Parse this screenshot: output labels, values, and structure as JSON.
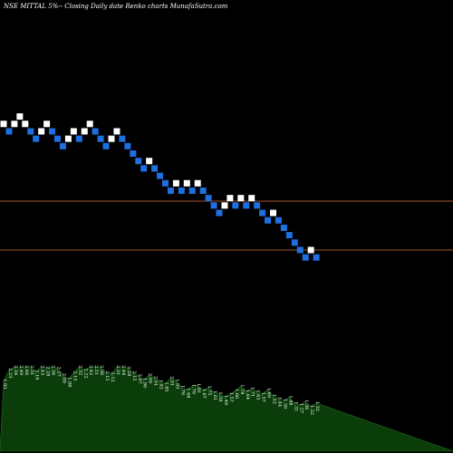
{
  "chart_data": {
    "type": "renko",
    "title": "NSE MITTAL 5%-- Closing Daily date Renko charts MunafaSutra.com",
    "colors": {
      "background": "#000000",
      "up_brick": "#ffffff",
      "down_brick": "#1e6fe0",
      "level_line": "#a0522d",
      "volume_area": "#0a3d0a",
      "volume_outline": "#1f6b1f",
      "label": "#ffffff"
    },
    "levels": [
      1.0,
      0.0
    ],
    "brick_range": [
      0,
      16
    ],
    "bricks": [
      {
        "dir": "up",
        "level": 14.5
      },
      {
        "dir": "down",
        "level": 13.5
      },
      {
        "dir": "up",
        "level": 14.5
      },
      {
        "dir": "up",
        "level": 15.5
      },
      {
        "dir": "up",
        "level": 14.5
      },
      {
        "dir": "down",
        "level": 13.5
      },
      {
        "dir": "down",
        "level": 12.5
      },
      {
        "dir": "up",
        "level": 13.5
      },
      {
        "dir": "up",
        "level": 14.5
      },
      {
        "dir": "down",
        "level": 13.5
      },
      {
        "dir": "down",
        "level": 12.5
      },
      {
        "dir": "down",
        "level": 11.5
      },
      {
        "dir": "up",
        "level": 12.5
      },
      {
        "dir": "up",
        "level": 13.5
      },
      {
        "dir": "down",
        "level": 12.5
      },
      {
        "dir": "up",
        "level": 13.5
      },
      {
        "dir": "up",
        "level": 14.5
      },
      {
        "dir": "down",
        "level": 13.5
      },
      {
        "dir": "down",
        "level": 12.5
      },
      {
        "dir": "down",
        "level": 11.5
      },
      {
        "dir": "up",
        "level": 12.5
      },
      {
        "dir": "up",
        "level": 13.5
      },
      {
        "dir": "down",
        "level": 12.5
      },
      {
        "dir": "down",
        "level": 11.5
      },
      {
        "dir": "down",
        "level": 10.5
      },
      {
        "dir": "down",
        "level": 9.5
      },
      {
        "dir": "down",
        "level": 8.5
      },
      {
        "dir": "up",
        "level": 9.5
      },
      {
        "dir": "down",
        "level": 8.5
      },
      {
        "dir": "down",
        "level": 7.5
      },
      {
        "dir": "down",
        "level": 6.5
      },
      {
        "dir": "down",
        "level": 5.5
      },
      {
        "dir": "up",
        "level": 6.5
      },
      {
        "dir": "down",
        "level": 5.5
      },
      {
        "dir": "up",
        "level": 6.5
      },
      {
        "dir": "down",
        "level": 5.5
      },
      {
        "dir": "up",
        "level": 6.5
      },
      {
        "dir": "down",
        "level": 5.5
      },
      {
        "dir": "down",
        "level": 4.5
      },
      {
        "dir": "down",
        "level": 3.5
      },
      {
        "dir": "down",
        "level": 2.5
      },
      {
        "dir": "up",
        "level": 3.5
      },
      {
        "dir": "up",
        "level": 4.5
      },
      {
        "dir": "down",
        "level": 3.5
      },
      {
        "dir": "up",
        "level": 4.5
      },
      {
        "dir": "down",
        "level": 3.5
      },
      {
        "dir": "up",
        "level": 4.5
      },
      {
        "dir": "down",
        "level": 3.5
      },
      {
        "dir": "down",
        "level": 2.5
      },
      {
        "dir": "down",
        "level": 1.5
      },
      {
        "dir": "up",
        "level": 2.5
      },
      {
        "dir": "down",
        "level": 1.5
      },
      {
        "dir": "down",
        "level": 0.5
      },
      {
        "dir": "down",
        "level": -0.5
      },
      {
        "dir": "down",
        "level": -1.5
      },
      {
        "dir": "down",
        "level": -2.5
      },
      {
        "dir": "down",
        "level": -3.5
      },
      {
        "dir": "up",
        "level": -2.5
      },
      {
        "dir": "down",
        "level": -3.5
      }
    ],
    "volume_range": [
      0,
      3
    ],
    "volume_labels": [
      "1.93",
      "2.23",
      "2.34",
      "2.49",
      "2.66",
      "2.31",
      "2.18",
      "2.43",
      "2.28",
      "2.36",
      "2.27",
      "2.09",
      "1.98",
      "2.15",
      "2.32",
      "2.22",
      "2.42",
      "2.51",
      "2.36",
      "2.15",
      "2.12",
      "2.31",
      "2.44",
      "2.28",
      "2.15",
      "2.07",
      "1.96",
      "2.09",
      "2.01",
      "1.92",
      "1.85",
      "2.01",
      "1.93",
      "1.76",
      "1.68",
      "1.79",
      "1.81",
      "1.67",
      "1.75",
      "1.61",
      "1.58",
      "1.49",
      "1.57",
      "1.66",
      "1.78",
      "1.64",
      "1.71",
      "1.63",
      "1.57",
      "1.69",
      "1.52",
      "1.44",
      "1.39",
      "1.48",
      "1.31",
      "1.27",
      "1.36",
      "1.22",
      "1.32"
    ]
  }
}
